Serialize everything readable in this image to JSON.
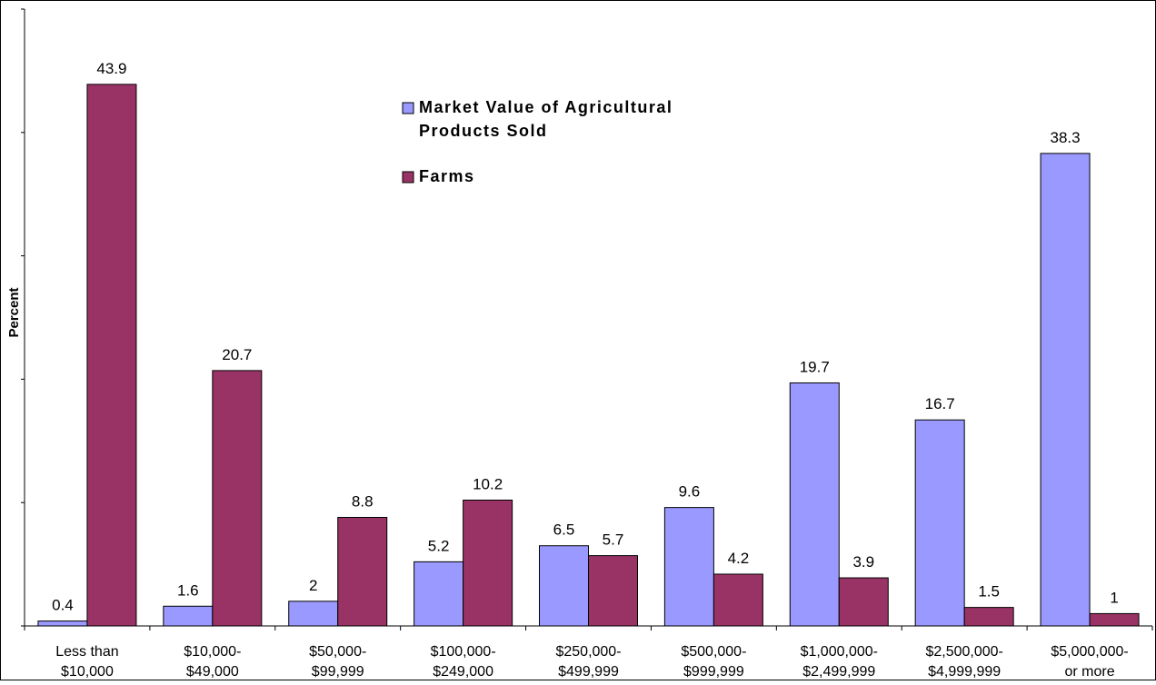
{
  "chart_data": {
    "type": "bar",
    "title": "",
    "xlabel": "",
    "ylabel": "Percent",
    "ylim": [
      0,
      50
    ],
    "grid": false,
    "legend_placement": "top-center",
    "categories": [
      [
        "Less than",
        "$10,000"
      ],
      [
        "$10,000-",
        "$49,000"
      ],
      [
        "$50,000-",
        "$99,999"
      ],
      [
        "$100,000-",
        "$249,000"
      ],
      [
        "$250,000-",
        "$499,999"
      ],
      [
        "$500,000-",
        "$999,999"
      ],
      [
        "$1,000,000-",
        "$2,499,999"
      ],
      [
        "$2,500,000-",
        "$4,999,999"
      ],
      [
        "$5,000,000-",
        "or more"
      ]
    ],
    "series": [
      {
        "name": "Market Value of Agricultural Products Sold",
        "legend_lines": [
          "Market Value of Agricultural",
          "Products Sold"
        ],
        "color": "#9999FF",
        "values": [
          0.4,
          1.6,
          2,
          5.2,
          6.5,
          9.6,
          19.7,
          16.7,
          38.3
        ],
        "labels": [
          "0.4",
          "1.6",
          "2",
          "5.2",
          "6.5",
          "9.6",
          "19.7",
          "16.7",
          "38.3"
        ]
      },
      {
        "name": "Farms",
        "legend_lines": [
          "Farms"
        ],
        "color": "#993366",
        "values": [
          43.9,
          20.7,
          8.8,
          10.2,
          5.7,
          4.2,
          3.9,
          1.5,
          1
        ],
        "labels": [
          "43.9",
          "20.7",
          "8.8",
          "10.2",
          "5.7",
          "4.2",
          "3.9",
          "1.5",
          "1"
        ]
      }
    ]
  }
}
